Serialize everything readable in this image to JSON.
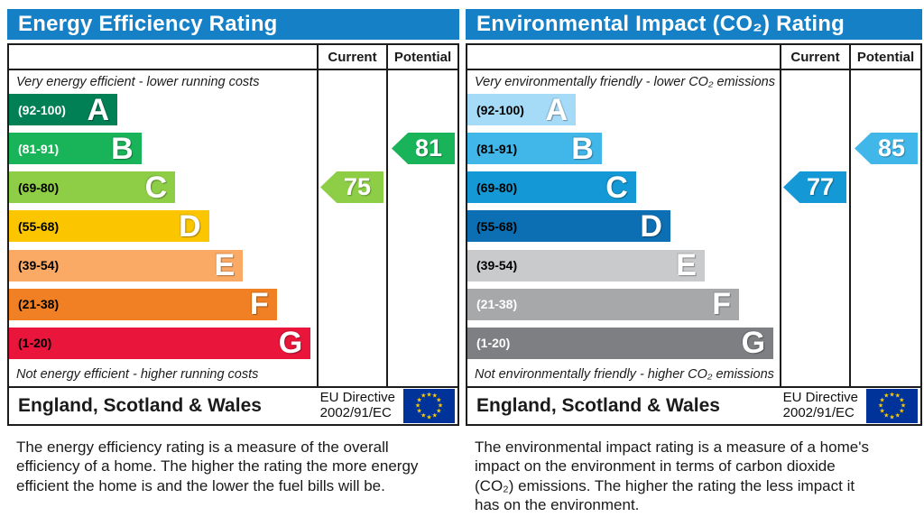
{
  "panels": [
    {
      "title": "Energy Efficiency Rating",
      "columns": {
        "current": "Current",
        "potential": "Potential"
      },
      "top_caption": "Very energy efficient - lower running costs",
      "bottom_caption": "Not energy efficient - higher running costs",
      "bands": [
        {
          "letter": "A",
          "range": "(92-100)",
          "color": "#008054",
          "width_pct": 32,
          "label_color": "#ffffff"
        },
        {
          "letter": "B",
          "range": "(81-91)",
          "color": "#19b459",
          "width_pct": 43,
          "label_color": "#ffffff"
        },
        {
          "letter": "C",
          "range": "(69-80)",
          "color": "#8dce46",
          "width_pct": 54,
          "label_color": "#000000"
        },
        {
          "letter": "D",
          "range": "(55-68)",
          "color": "#fbc500",
          "width_pct": 65,
          "label_color": "#000000"
        },
        {
          "letter": "E",
          "range": "(39-54)",
          "color": "#fbaa65",
          "width_pct": 76,
          "label_color": "#000000"
        },
        {
          "letter": "F",
          "range": "(21-38)",
          "color": "#f08023",
          "width_pct": 87,
          "label_color": "#000000"
        },
        {
          "letter": "G",
          "range": "(1-20)",
          "color": "#e9153b",
          "width_pct": 98,
          "label_color": "#000000"
        }
      ],
      "arrows": {
        "current": {
          "value": "75",
          "band": "C",
          "color": "#8dce46"
        },
        "potential": {
          "value": "81",
          "band": "B",
          "color": "#19b459"
        }
      },
      "footer": {
        "region": "England, Scotland & Wales",
        "directive_line1": "EU Directive",
        "directive_line2": "2002/91/EC"
      },
      "description": "The energy efficiency rating is a measure of the overall efficiency of a home. The higher the rating the more energy efficient the home is and the lower the fuel bills will be."
    },
    {
      "title": "Environmental Impact (CO₂) Rating",
      "columns": {
        "current": "Current",
        "potential": "Potential"
      },
      "top_caption": "Very environmentally friendly - lower CO₂ emissions",
      "bottom_caption": "Not environmentally friendly - higher CO₂ emissions",
      "bands": [
        {
          "letter": "A",
          "range": "(92-100)",
          "color": "#a5dbf7",
          "width_pct": 32,
          "label_color": "#000000"
        },
        {
          "letter": "B",
          "range": "(81-91)",
          "color": "#40b6e9",
          "width_pct": 43,
          "label_color": "#000000"
        },
        {
          "letter": "C",
          "range": "(69-80)",
          "color": "#1499d6",
          "width_pct": 54,
          "label_color": "#000000"
        },
        {
          "letter": "D",
          "range": "(55-68)",
          "color": "#0d6fb3",
          "width_pct": 65,
          "label_color": "#000000"
        },
        {
          "letter": "E",
          "range": "(39-54)",
          "color": "#c9cacc",
          "width_pct": 76,
          "label_color": "#000000"
        },
        {
          "letter": "F",
          "range": "(21-38)",
          "color": "#a7a8aa",
          "width_pct": 87,
          "label_color": "#ffffff"
        },
        {
          "letter": "G",
          "range": "(1-20)",
          "color": "#7d7f82",
          "width_pct": 98,
          "label_color": "#ffffff"
        }
      ],
      "arrows": {
        "current": {
          "value": "77",
          "band": "C",
          "color": "#1499d6"
        },
        "potential": {
          "value": "85",
          "band": "B",
          "color": "#40b6e9"
        }
      },
      "footer": {
        "region": "England, Scotland & Wales",
        "directive_line1": "EU Directive",
        "directive_line2": "2002/91/EC"
      },
      "description": "The environmental impact rating is a measure of a home's impact on the environment in terms of carbon dioxide (CO₂) emissions. The higher the rating the less impact it has on the environment."
    }
  ],
  "chart_data": [
    {
      "type": "bar",
      "title": "Energy Efficiency Rating",
      "categories": [
        "A (92-100)",
        "B (81-91)",
        "C (69-80)",
        "D (55-68)",
        "E (39-54)",
        "F (21-38)",
        "G (1-20)"
      ],
      "band_colors": [
        "#008054",
        "#19b459",
        "#8dce46",
        "#fbc500",
        "#fbaa65",
        "#f08023",
        "#e9153b"
      ],
      "current": 75,
      "current_band": "C",
      "potential": 81,
      "potential_band": "B",
      "scale": [
        1,
        100
      ],
      "top_note": "Very energy efficient - lower running costs",
      "bottom_note": "Not energy efficient - higher running costs"
    },
    {
      "type": "bar",
      "title": "Environmental Impact (CO₂) Rating",
      "categories": [
        "A (92-100)",
        "B (81-91)",
        "C (69-80)",
        "D (55-68)",
        "E (39-54)",
        "F (21-38)",
        "G (1-20)"
      ],
      "band_colors": [
        "#a5dbf7",
        "#40b6e9",
        "#1499d6",
        "#0d6fb3",
        "#c9cacc",
        "#a7a8aa",
        "#7d7f82"
      ],
      "current": 77,
      "current_band": "C",
      "potential": 85,
      "potential_band": "B",
      "scale": [
        1,
        100
      ],
      "top_note": "Very environmentally friendly - lower CO₂ emissions",
      "bottom_note": "Not environmentally friendly - higher CO₂ emissions"
    }
  ]
}
